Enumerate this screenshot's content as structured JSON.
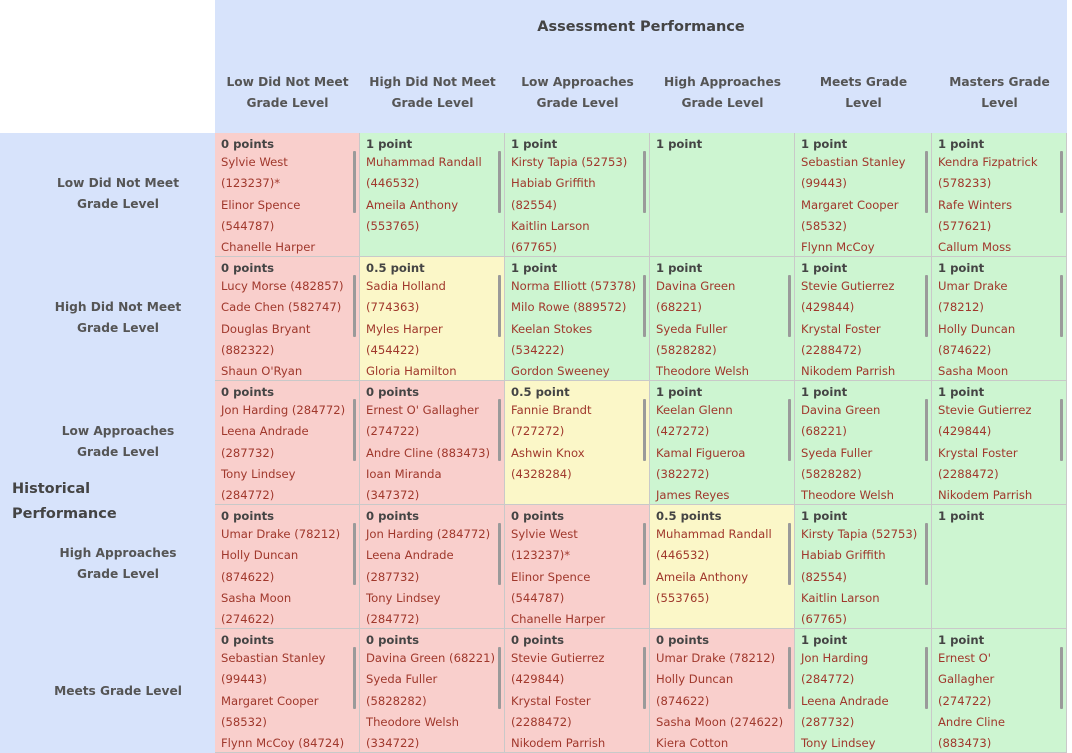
{
  "assessment_title": "Assessment Performance",
  "historical_title_line1": "Historical",
  "historical_title_line2": "Performance",
  "columns": [
    {
      "line1": "Low Did Not Meet",
      "line2": "Grade Level"
    },
    {
      "line1": "High Did Not Meet",
      "line2": "Grade Level"
    },
    {
      "line1": "Low Approaches",
      "line2": "Grade Level"
    },
    {
      "line1": "High Approaches",
      "line2": "Grade Level"
    },
    {
      "line1": "Meets Grade",
      "line2": "Level"
    },
    {
      "line1": "Masters Grade",
      "line2": "Level"
    }
  ],
  "rows": [
    {
      "label_line1": "Low Did Not Meet",
      "label_line2": "Grade Level",
      "cells": [
        {
          "points": "0 points",
          "color": "red",
          "lines": [
            "Sylvie West",
            "(123237)*",
            "Elinor Spence",
            "(544787)",
            "Chanelle Harper"
          ]
        },
        {
          "points": "1 point",
          "color": "green",
          "lines": [
            "Muhammad Randall",
            "(446532)",
            "Ameila Anthony",
            "(553765)"
          ]
        },
        {
          "points": "1 point",
          "color": "green",
          "lines": [
            "Kirsty Tapia (52753)",
            "Habiab Griffith",
            "(82554)",
            "Kaitlin Larson",
            "(67765)"
          ]
        },
        {
          "points": "1 point",
          "color": "green",
          "lines": []
        },
        {
          "points": "1 point",
          "color": "green",
          "lines": [
            "Sebastian Stanley",
            "(99443)",
            "Margaret Cooper",
            "(58532)",
            "Flynn McCoy"
          ]
        },
        {
          "points": "1 point",
          "color": "green",
          "lines": [
            "Kendra Fizpatrick",
            "(578233)",
            "Rafe Winters",
            "(577621)",
            "Callum Moss"
          ]
        }
      ]
    },
    {
      "label_line1": "High Did Not Meet",
      "label_line2": "Grade Level",
      "cells": [
        {
          "points": "0 points",
          "color": "red",
          "lines": [
            "Lucy Morse (482857)",
            "Cade Chen (582747)",
            "Douglas Bryant",
            "(882322)",
            "Shaun O'Ryan"
          ]
        },
        {
          "points": "0.5 point",
          "color": "yellow",
          "lines": [
            "Sadia Holland",
            "(774363)",
            "Myles Harper",
            "(454422)",
            "Gloria Hamilton"
          ]
        },
        {
          "points": "1 point",
          "color": "green",
          "lines": [
            "Norma Elliott (57378)",
            "Milo Rowe (889572)",
            "Keelan Stokes",
            "(534222)",
            "Gordon Sweeney"
          ]
        },
        {
          "points": "1 point",
          "color": "green",
          "lines": [
            "Davina Green",
            "(68221)",
            "Syeda Fuller",
            "(5828282)",
            "Theodore Welsh"
          ]
        },
        {
          "points": "1 point",
          "color": "green",
          "lines": [
            "Stevie Gutierrez",
            "(429844)",
            "Krystal Foster",
            "(2288472)",
            "Nikodem Parrish"
          ]
        },
        {
          "points": "1 point",
          "color": "green",
          "lines": [
            "Umar Drake",
            "(78212)",
            "Holly Duncan",
            "(874622)",
            "Sasha Moon"
          ]
        }
      ]
    },
    {
      "label_line1": "Low Approaches",
      "label_line2": "Grade Level",
      "cells": [
        {
          "points": "0 points",
          "color": "red",
          "lines": [
            "Jon Harding (284772)",
            "Leena Andrade",
            "(287732)",
            "Tony Lindsey",
            "(284772)"
          ]
        },
        {
          "points": "0 points",
          "color": "red",
          "lines": [
            "Ernest O' Gallagher",
            "(274722)",
            "Andre Cline (883473)",
            "Ioan Miranda",
            "(347372)"
          ]
        },
        {
          "points": "0.5 point",
          "color": "yellow",
          "lines": [
            "Fannie Brandt",
            "(727272)",
            "Ashwin Knox",
            "(4328284)"
          ]
        },
        {
          "points": "1 point",
          "color": "green",
          "lines": [
            "Keelan Glenn",
            "(427272)",
            "Kamal Figueroa",
            "(382272)",
            "James Reyes"
          ]
        },
        {
          "points": "1 point",
          "color": "green",
          "lines": [
            "Davina Green",
            "(68221)",
            "Syeda Fuller",
            "(5828282)",
            "Theodore Welsh"
          ]
        },
        {
          "points": "1 point",
          "color": "green",
          "lines": [
            "Stevie Gutierrez",
            "(429844)",
            "Krystal Foster",
            "(2288472)",
            "Nikodem Parrish"
          ]
        }
      ]
    },
    {
      "label_line1": "High Approaches",
      "label_line2": "Grade Level",
      "cells": [
        {
          "points": "0 points",
          "color": "red",
          "lines": [
            "Umar Drake (78212)",
            "Holly Duncan",
            "(874622)",
            "Sasha Moon",
            "(274622)"
          ]
        },
        {
          "points": "0 points",
          "color": "red",
          "lines": [
            "Jon Harding (284772)",
            "Leena Andrade",
            "(287732)",
            "Tony Lindsey",
            "(284772)"
          ]
        },
        {
          "points": "0 points",
          "color": "red",
          "lines": [
            "Sylvie West",
            "(123237)*",
            "Elinor Spence",
            "(544787)",
            "Chanelle Harper"
          ]
        },
        {
          "points": "0.5 points",
          "color": "yellow",
          "lines": [
            "Muhammad Randall",
            "(446532)",
            "Ameila Anthony",
            "(553765)"
          ]
        },
        {
          "points": "1 point",
          "color": "green",
          "lines": [
            "Kirsty Tapia (52753)",
            "Habiab Griffith",
            "(82554)",
            "Kaitlin Larson",
            "(67765)"
          ]
        },
        {
          "points": "1 point",
          "color": "green",
          "lines": []
        }
      ]
    },
    {
      "label_line1": "Meets Grade Level",
      "label_line2": "",
      "cells": [
        {
          "points": "0 points",
          "color": "red",
          "lines": [
            "Sebastian Stanley",
            "(99443)",
            "Margaret Cooper",
            "(58532)",
            "Flynn McCoy (84724)"
          ]
        },
        {
          "points": "0 points",
          "color": "red",
          "lines": [
            "Davina Green (68221)",
            "Syeda Fuller",
            "(5828282)",
            "Theodore Welsh",
            "(334722)"
          ]
        },
        {
          "points": "0 points",
          "color": "red",
          "lines": [
            "Stevie Gutierrez",
            "(429844)",
            "Krystal Foster",
            "(2288472)",
            "Nikodem Parrish"
          ]
        },
        {
          "points": "0 points",
          "color": "red",
          "lines": [
            "Umar Drake (78212)",
            "Holly Duncan",
            "(874622)",
            "Sasha Moon (274622)",
            "Kiera Cotton"
          ]
        },
        {
          "points": "1 point",
          "color": "green",
          "lines": [
            "Jon Harding",
            "(284772)",
            "Leena Andrade",
            "(287732)",
            "Tony Lindsey"
          ]
        },
        {
          "points": "1 point",
          "color": "green",
          "lines": [
            "Ernest O'",
            "Gallagher",
            "(274722)",
            "Andre Cline",
            "(883473)"
          ]
        }
      ]
    }
  ]
}
